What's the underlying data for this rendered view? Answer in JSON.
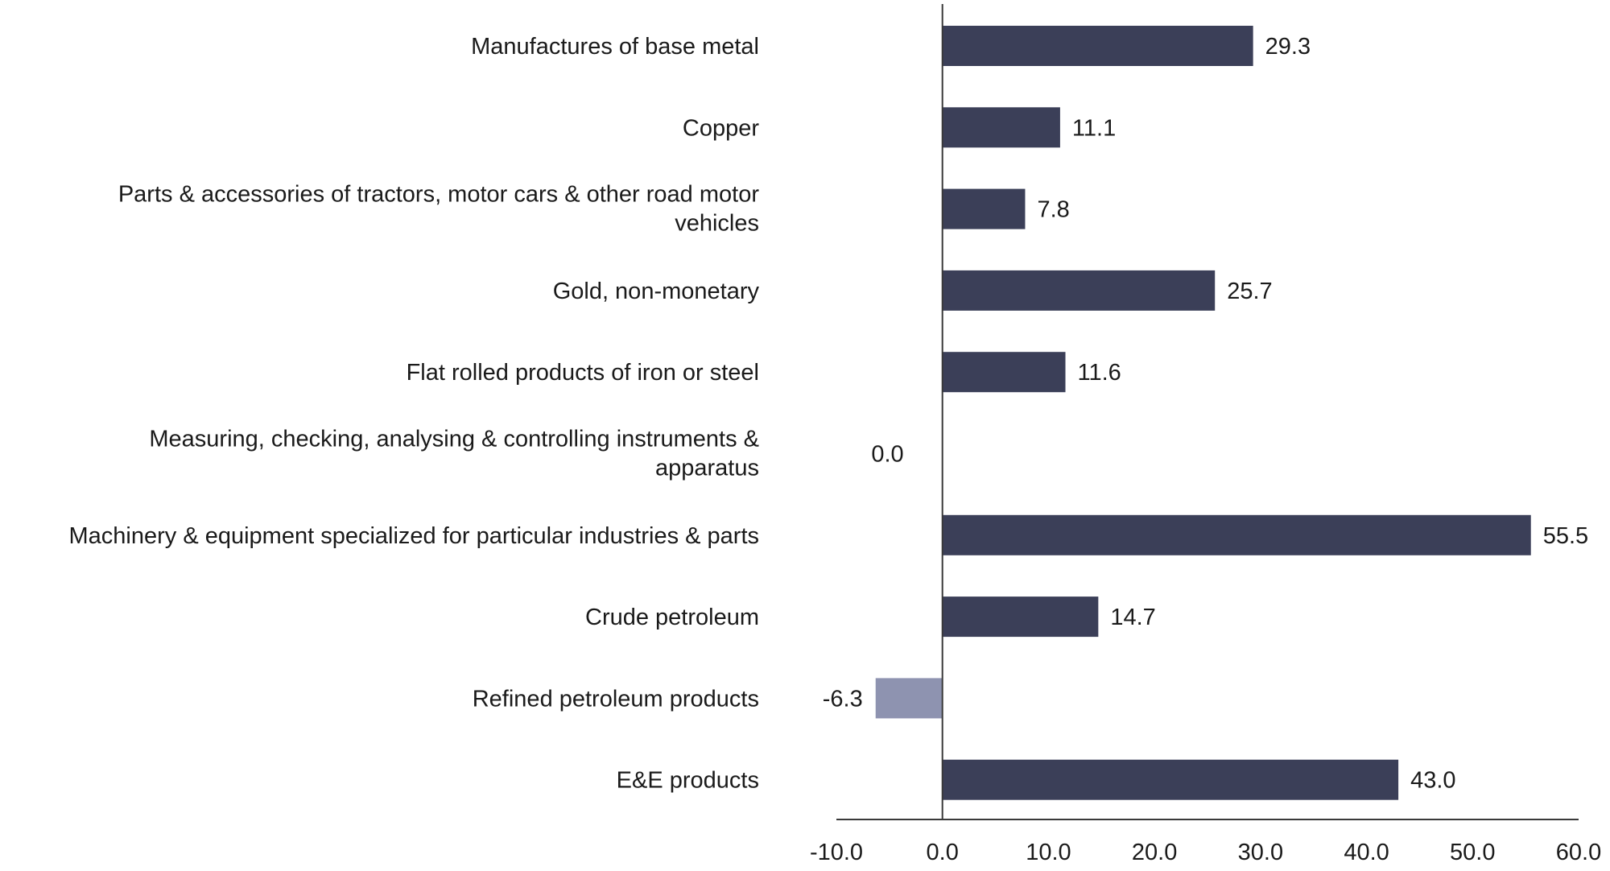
{
  "chart_data": {
    "type": "bar",
    "orientation": "horizontal",
    "title": "",
    "xlabel": "",
    "ylabel": "",
    "categories": [
      [
        "Manufactures of base metal"
      ],
      [
        "Copper"
      ],
      [
        "Parts & accessories of tractors, motor cars & other road motor",
        "vehicles"
      ],
      [
        "Gold, non-monetary"
      ],
      [
        "Flat rolled products of iron or steel"
      ],
      [
        "Measuring, checking, analysing & controlling instruments &",
        "apparatus"
      ],
      [
        "Machinery & equipment specialized for particular industries & parts"
      ],
      [
        "Crude petroleum"
      ],
      [
        "Refined petroleum products"
      ],
      [
        "E&E products"
      ]
    ],
    "values": [
      29.3,
      11.1,
      7.8,
      25.7,
      11.6,
      0.0,
      55.5,
      14.7,
      -6.3,
      43.0
    ],
    "value_labels": [
      "29.3",
      "11.1",
      "7.8",
      "25.7",
      "11.6",
      "0.0",
      "55.5",
      "14.7",
      "-6.3",
      "43.0"
    ],
    "xlim": [
      -10,
      60
    ],
    "x_ticks": [
      -10,
      0,
      10,
      20,
      30,
      40,
      50,
      60
    ],
    "x_tick_labels": [
      "-10.0",
      "0.0",
      "10.0",
      "20.0",
      "30.0",
      "40.0",
      "50.0",
      "60.0"
    ],
    "grid": false,
    "legend": "none",
    "colors": {
      "positive": "#3B3F58",
      "negative": "#8E93B0",
      "axis": "#3a3a3a",
      "text": "#1a1a1a"
    }
  }
}
